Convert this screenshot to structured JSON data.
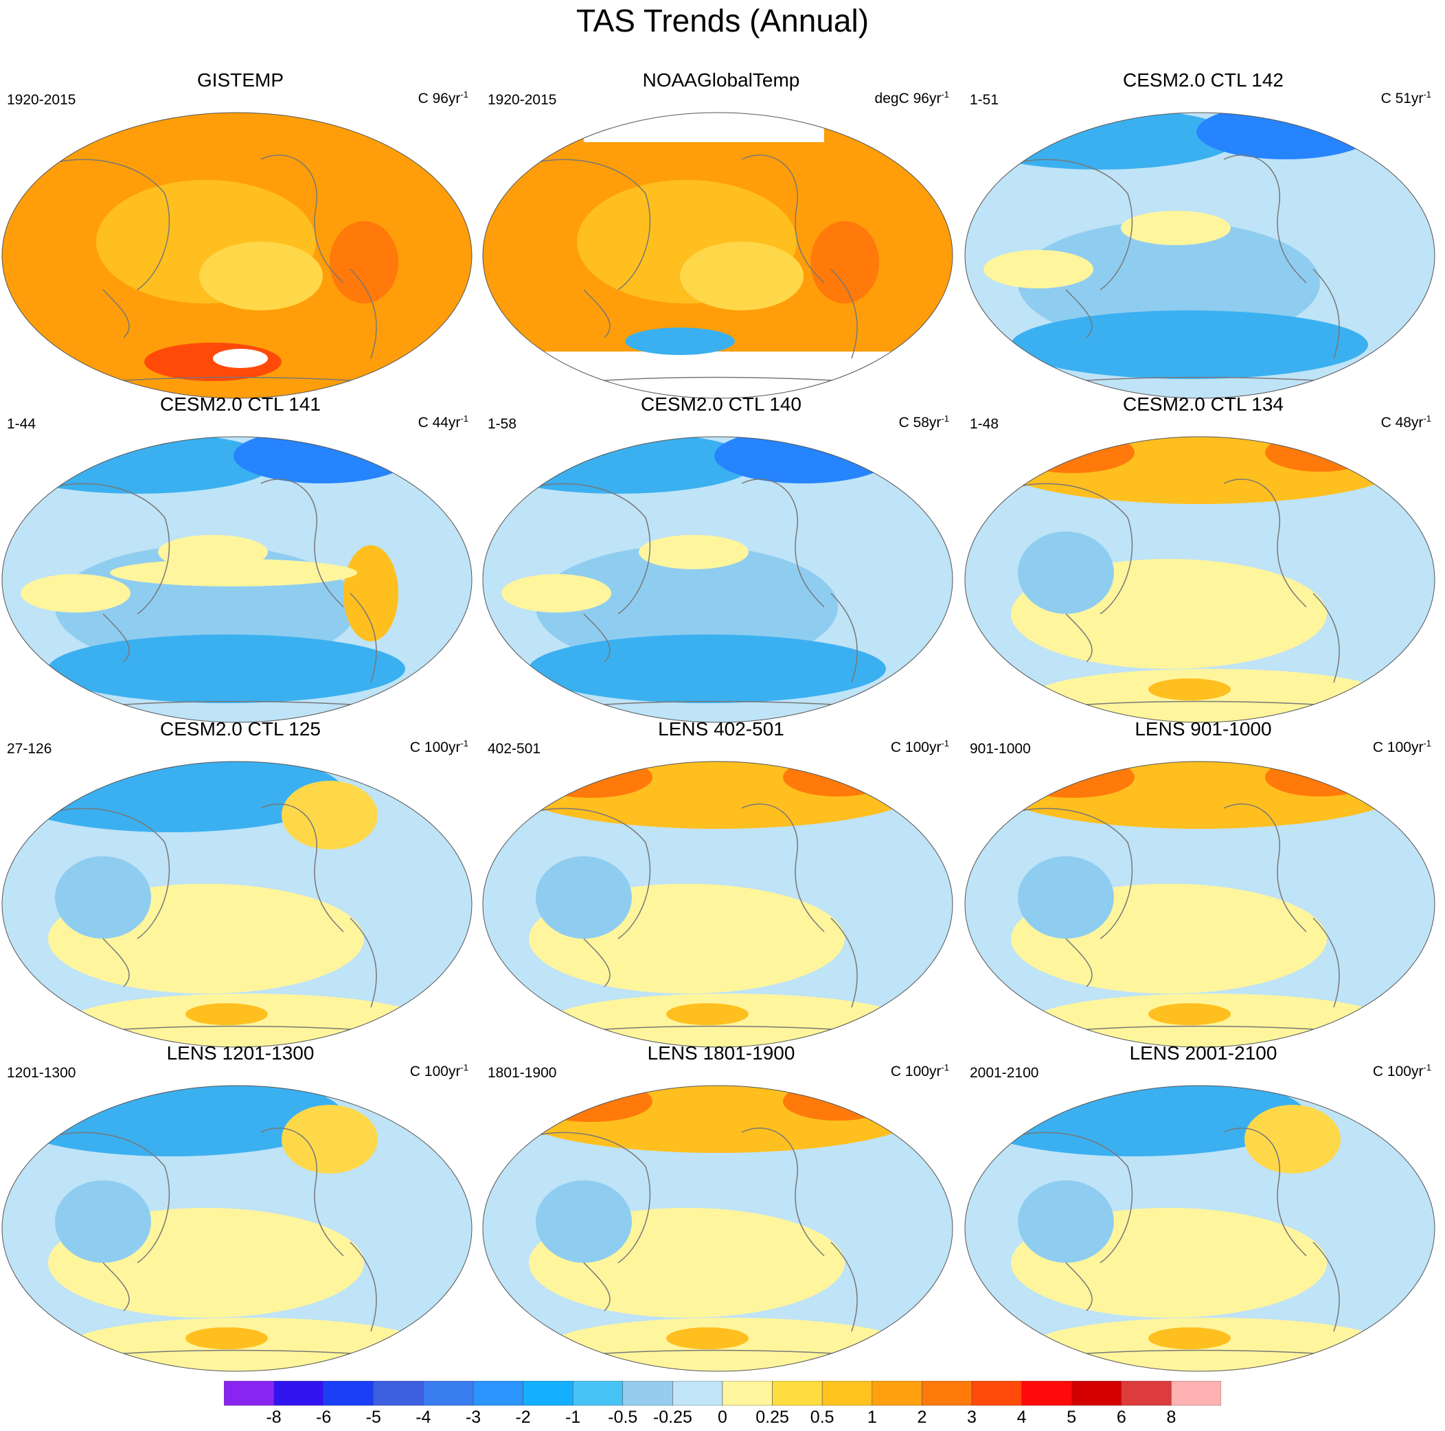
{
  "title": "TAS Trends (Annual)",
  "palette": {
    "ocean_warm_strong": "#ff9e0a",
    "warm_mid": "#ffbf1f",
    "warm_light": "#ffd84a",
    "neutral_warm": "#fff59d",
    "neutral_cool": "#bfe3f7",
    "cool_light": "#8fcdf0",
    "cool_mid": "#3bb0f0",
    "cool_strong": "#2684ff",
    "missing": "#ffffff",
    "coast": "#777777"
  },
  "panels": [
    {
      "title": "GISTEMP",
      "left_label": "1920-2015",
      "unit": "C 96yr",
      "exp": "-1",
      "base": "warm",
      "hot": "strong_warm"
    },
    {
      "title": "NOAAGlobalTemp",
      "left_label": "1920-2015",
      "unit": "degC 96yr",
      "exp": "-1",
      "base": "warm_missing",
      "hot": "strong_warm"
    },
    {
      "title": "CESM2.0 CTL 142",
      "left_label": "1-51",
      "unit": "C 51yr",
      "exp": "-1",
      "base": "cool",
      "hot": "cool"
    },
    {
      "title": "CESM2.0 CTL 141",
      "left_label": "1-44",
      "unit": "C 44yr",
      "exp": "-1",
      "base": "cool",
      "hot": "cool_mixed"
    },
    {
      "title": "CESM2.0 CTL 140",
      "left_label": "1-58",
      "unit": "C 58yr",
      "exp": "-1",
      "base": "cool",
      "hot": "cool"
    },
    {
      "title": "CESM2.0 CTL 134",
      "left_label": "1-48",
      "unit": "C 48yr",
      "exp": "-1",
      "base": "mixed",
      "hot": "warm_north"
    },
    {
      "title": "CESM2.0 CTL 125",
      "left_label": "27-126",
      "unit": "C 100yr",
      "exp": "-1",
      "base": "mixed",
      "hot": "cool_north"
    },
    {
      "title": "LENS 402-501",
      "left_label": "402-501",
      "unit": "C 100yr",
      "exp": "-1",
      "base": "mixed",
      "hot": "warm_north"
    },
    {
      "title": "LENS 901-1000",
      "left_label": "901-1000",
      "unit": "C 100yr",
      "exp": "-1",
      "base": "mixed",
      "hot": "warm_north"
    },
    {
      "title": "LENS 1201-1300",
      "left_label": "1201-1300",
      "unit": "C 100yr",
      "exp": "-1",
      "base": "mixed",
      "hot": "cool_north"
    },
    {
      "title": "LENS 1801-1900",
      "left_label": "1801-1900",
      "unit": "C 100yr",
      "exp": "-1",
      "base": "mixed",
      "hot": "warm_north"
    },
    {
      "title": "LENS 2001-2100",
      "left_label": "2001-2100",
      "unit": "C 100yr",
      "exp": "-1",
      "base": "mixed",
      "hot": "cool_north"
    }
  ],
  "colorbar": {
    "colors": [
      "#8a24f0",
      "#3214f0",
      "#1a3ff5",
      "#3d60e0",
      "#3a7df0",
      "#2b94ff",
      "#14b0ff",
      "#46c2f5",
      "#96cdee",
      "#c0e4f8",
      "#fff59d",
      "#ffdd40",
      "#ffc21f",
      "#ffa00f",
      "#ff7a0a",
      "#ff4a0a",
      "#ff0a0a",
      "#d40000",
      "#dc3c3c",
      "#ffb2b2"
    ],
    "labels": [
      "-8",
      "-6",
      "-5",
      "-4",
      "-3",
      "-2",
      "-1",
      "-0.5",
      "-0.25",
      "0",
      "0.25",
      "0.5",
      "1",
      "2",
      "3",
      "4",
      "5",
      "6",
      "8"
    ]
  }
}
